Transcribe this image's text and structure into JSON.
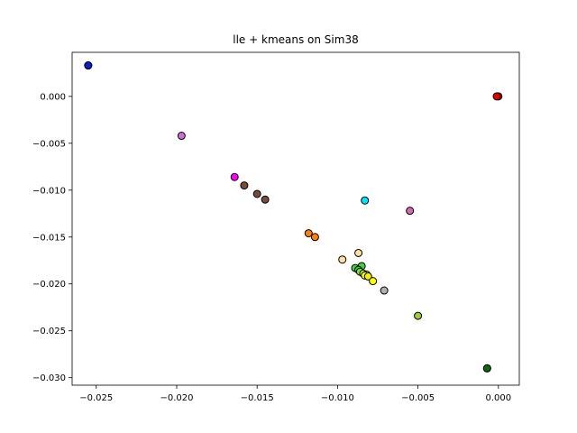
{
  "chart_data": {
    "type": "scatter",
    "title": "lle + kmeans on Sim38",
    "xlabel": "",
    "ylabel": "",
    "xlim": [
      -0.0265,
      0.0013
    ],
    "ylim": [
      -0.0308,
      0.0047
    ],
    "x_ticks": [
      -0.025,
      -0.02,
      -0.015,
      -0.01,
      -0.005,
      0.0
    ],
    "x_tick_labels": [
      "−0.025",
      "−0.020",
      "−0.015",
      "−0.010",
      "−0.005",
      "0.000"
    ],
    "y_ticks": [
      0.0,
      -0.005,
      -0.01,
      -0.015,
      -0.02,
      -0.025,
      -0.03
    ],
    "y_tick_labels": [
      "0.000",
      "−0.005",
      "−0.010",
      "−0.015",
      "−0.020",
      "−0.025",
      "−0.030"
    ],
    "grid": false,
    "legend": "none",
    "marker_edge_color": "#000000",
    "points": [
      {
        "x": -0.0255,
        "y": 0.0033,
        "color": "#1f1fff"
      },
      {
        "x": -0.0255,
        "y": 0.0033,
        "color": "#0a1fcc"
      },
      {
        "x": 0.0,
        "y": 0.0,
        "color": "#ff0000"
      },
      {
        "x": -0.0001,
        "y": 0.0,
        "color": "#e00000"
      },
      {
        "x": -0.0197,
        "y": -0.0042,
        "color": "#d46ad4"
      },
      {
        "x": -0.0164,
        "y": -0.0086,
        "color": "#ff00ff"
      },
      {
        "x": -0.0158,
        "y": -0.0095,
        "color": "#7a4a3a"
      },
      {
        "x": -0.015,
        "y": -0.0104,
        "color": "#7a4a3a"
      },
      {
        "x": -0.0145,
        "y": -0.011,
        "color": "#7a4a3a"
      },
      {
        "x": -0.0083,
        "y": -0.0111,
        "color": "#00e5ff"
      },
      {
        "x": -0.0055,
        "y": -0.0122,
        "color": "#d46ab4"
      },
      {
        "x": -0.0118,
        "y": -0.0146,
        "color": "#ff7f0e"
      },
      {
        "x": -0.0114,
        "y": -0.015,
        "color": "#ff7f0e"
      },
      {
        "x": -0.0087,
        "y": -0.0167,
        "color": "#ffe0a0"
      },
      {
        "x": -0.0097,
        "y": -0.0174,
        "color": "#ffe0a0"
      },
      {
        "x": -0.0085,
        "y": -0.0181,
        "color": "#40d040"
      },
      {
        "x": -0.0089,
        "y": -0.0183,
        "color": "#40d040"
      },
      {
        "x": -0.0087,
        "y": -0.0185,
        "color": "#40d040"
      },
      {
        "x": -0.0086,
        "y": -0.0187,
        "color": "#80e040"
      },
      {
        "x": -0.0084,
        "y": -0.0189,
        "color": "#c0f020"
      },
      {
        "x": -0.0082,
        "y": -0.019,
        "color": "#e0f010"
      },
      {
        "x": -0.0083,
        "y": -0.0191,
        "color": "#ffff00"
      },
      {
        "x": -0.0081,
        "y": -0.0192,
        "color": "#f0f000"
      },
      {
        "x": -0.0078,
        "y": -0.0197,
        "color": "#ffff00"
      },
      {
        "x": -0.0071,
        "y": -0.0207,
        "color": "#b0b0b0"
      },
      {
        "x": -0.005,
        "y": -0.0234,
        "color": "#9acd32"
      },
      {
        "x": -0.0007,
        "y": -0.029,
        "color": "#1a8a1a"
      },
      {
        "x": -0.0007,
        "y": -0.029,
        "color": "#0a6a0a"
      }
    ]
  }
}
